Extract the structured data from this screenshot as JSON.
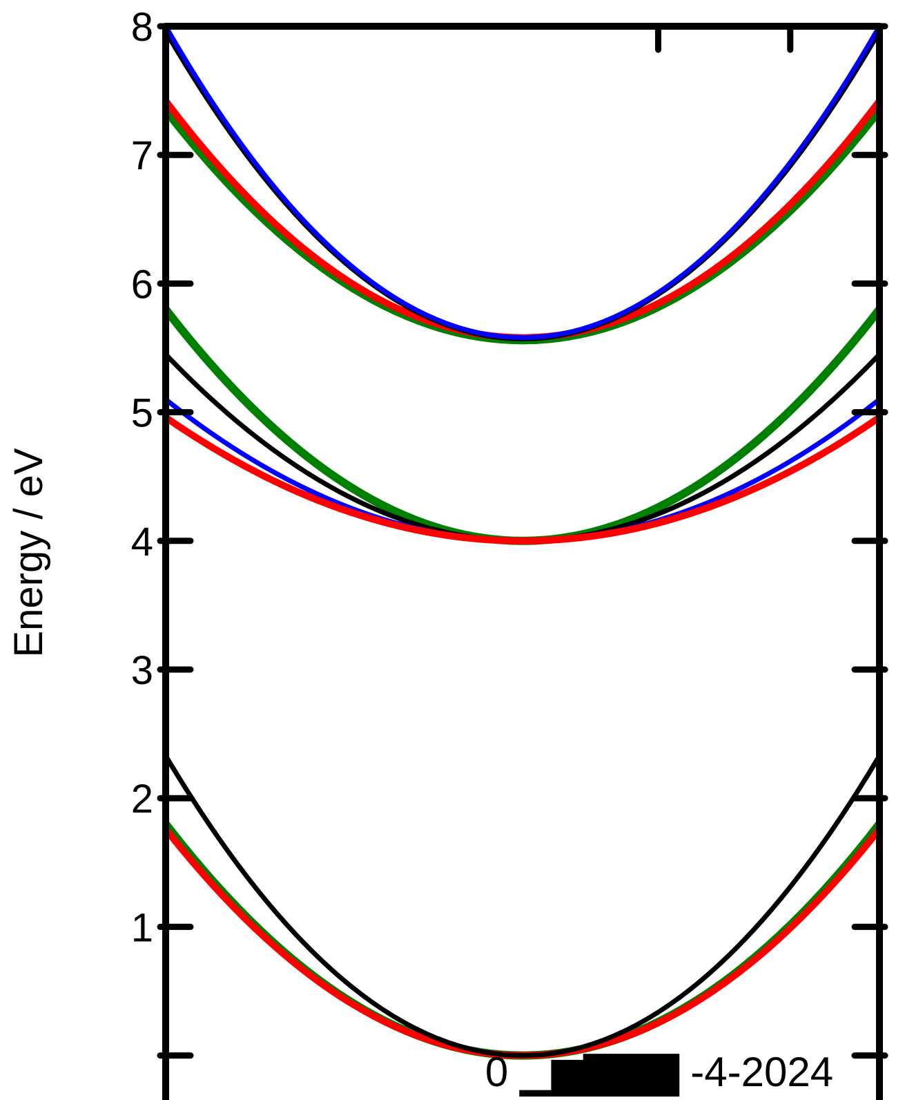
{
  "chart_data": {
    "type": "line",
    "title": "",
    "xlabel": "",
    "ylabel": "Energy / eV",
    "ylim": [
      -0.1,
      8
    ],
    "xlim": [
      -1,
      1
    ],
    "y_ticks": [
      "1",
      "2",
      "3",
      "4",
      "5",
      "6",
      "7",
      "8"
    ],
    "grid": false,
    "legend": "none",
    "watermark_text": "0 ▁▆▇▇▇ -4-2024",
    "series": [
      {
        "color": "#008000",
        "width": 12,
        "points": [
          [
            -1,
            1.8
          ],
          [
            0,
            0
          ],
          [
            1,
            1.8
          ]
        ]
      },
      {
        "color": "#ff0000",
        "width": 10,
        "points": [
          [
            -1,
            1.76
          ],
          [
            0,
            0
          ],
          [
            1,
            1.76
          ]
        ]
      },
      {
        "color": "#000000",
        "width": 7,
        "points": [
          [
            -1,
            2.33
          ],
          [
            0,
            0
          ],
          [
            1,
            2.33
          ]
        ]
      },
      {
        "color": "#008000",
        "width": 12,
        "points": [
          [
            -1,
            5.8
          ],
          [
            0,
            4.0
          ],
          [
            1,
            5.8
          ]
        ]
      },
      {
        "color": "#000000",
        "width": 7,
        "points": [
          [
            -1,
            5.45
          ],
          [
            0,
            4.0
          ],
          [
            1,
            5.45
          ]
        ]
      },
      {
        "color": "#0000ff",
        "width": 7,
        "points": [
          [
            -1,
            5.1
          ],
          [
            0,
            4.0
          ],
          [
            1,
            5.1
          ]
        ]
      },
      {
        "color": "#ff0000",
        "width": 10,
        "points": [
          [
            -1,
            4.96
          ],
          [
            0,
            4.0
          ],
          [
            1,
            4.96
          ]
        ]
      },
      {
        "color": "#008000",
        "width": 12,
        "points": [
          [
            -1,
            7.35
          ],
          [
            0,
            5.56
          ],
          [
            1,
            7.35
          ]
        ]
      },
      {
        "color": "#ff0000",
        "width": 10,
        "points": [
          [
            -1,
            7.42
          ],
          [
            0,
            5.58
          ],
          [
            1,
            7.42
          ]
        ]
      },
      {
        "color": "#000000",
        "width": 7,
        "points": [
          [
            -1,
            7.96
          ],
          [
            0,
            5.57
          ],
          [
            1,
            7.96
          ]
        ]
      },
      {
        "color": "#0000ff",
        "width": 7,
        "points": [
          [
            -1,
            8.0
          ],
          [
            0,
            5.58
          ],
          [
            1,
            8.0
          ]
        ]
      }
    ]
  }
}
